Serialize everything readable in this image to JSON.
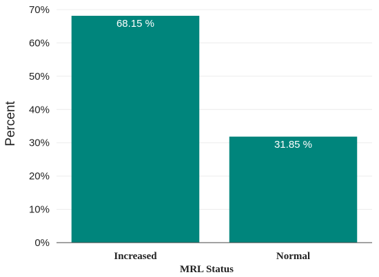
{
  "chart_data": {
    "type": "bar",
    "categories": [
      "Increased",
      "Normal"
    ],
    "values": [
      68.15,
      31.85
    ],
    "data_labels": [
      "68.15 %",
      "31.85 %"
    ],
    "title": "",
    "xlabel": "MRL Status",
    "ylabel": "Percent",
    "ylim": [
      0,
      70
    ],
    "yticks": [
      0,
      10,
      20,
      30,
      40,
      50,
      60,
      70
    ],
    "ytick_labels": [
      "0%",
      "10%",
      "20%",
      "30%",
      "40%",
      "50%",
      "60%",
      "70%"
    ],
    "grid": true,
    "bar_color": "#00857c",
    "legend": "none"
  }
}
